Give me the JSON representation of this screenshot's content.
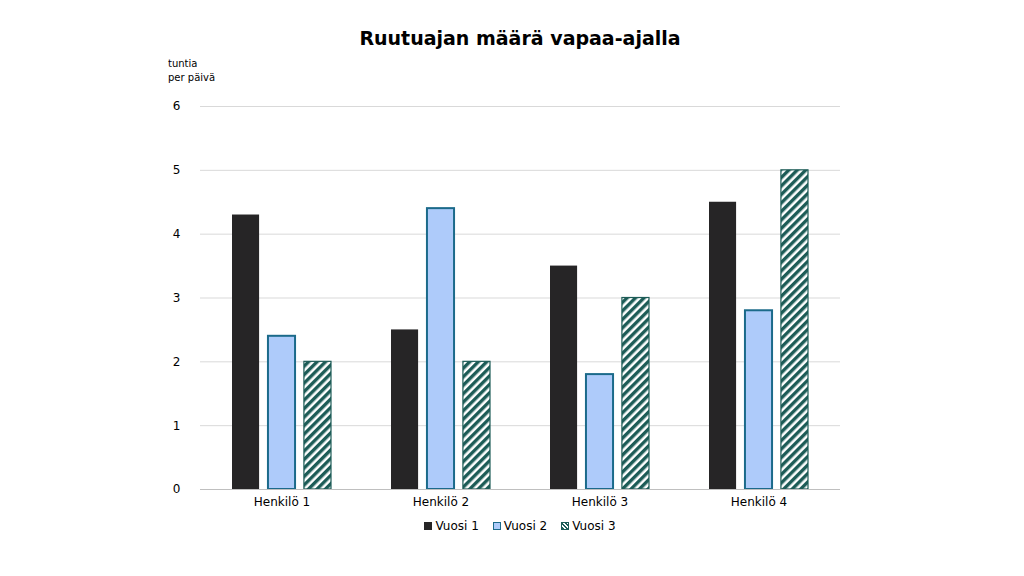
{
  "chart_data": {
    "type": "bar",
    "title": "Ruutuajan määrä vapaa-ajalla",
    "ylabel": "tuntia\nper päivä",
    "categories": [
      "Henkilö 1",
      "Henkilö 2",
      "Henkilö 3",
      "Henkilö 4"
    ],
    "series": [
      {
        "name": "Vuosi 1",
        "color": "#262526",
        "values": [
          4.3,
          2.5,
          3.5,
          4.5
        ]
      },
      {
        "name": "Vuosi 2",
        "color": "#aecbfa",
        "values": [
          2.4,
          4.4,
          1.8,
          2.8
        ]
      },
      {
        "name": "Vuosi 3",
        "color": "#1d5c57",
        "values": [
          2,
          2,
          3,
          5
        ]
      }
    ],
    "ylim": [
      0,
      6
    ],
    "yticks": [
      0,
      1,
      2,
      3,
      4,
      5,
      6
    ],
    "grid": true,
    "legend": "bottom"
  }
}
